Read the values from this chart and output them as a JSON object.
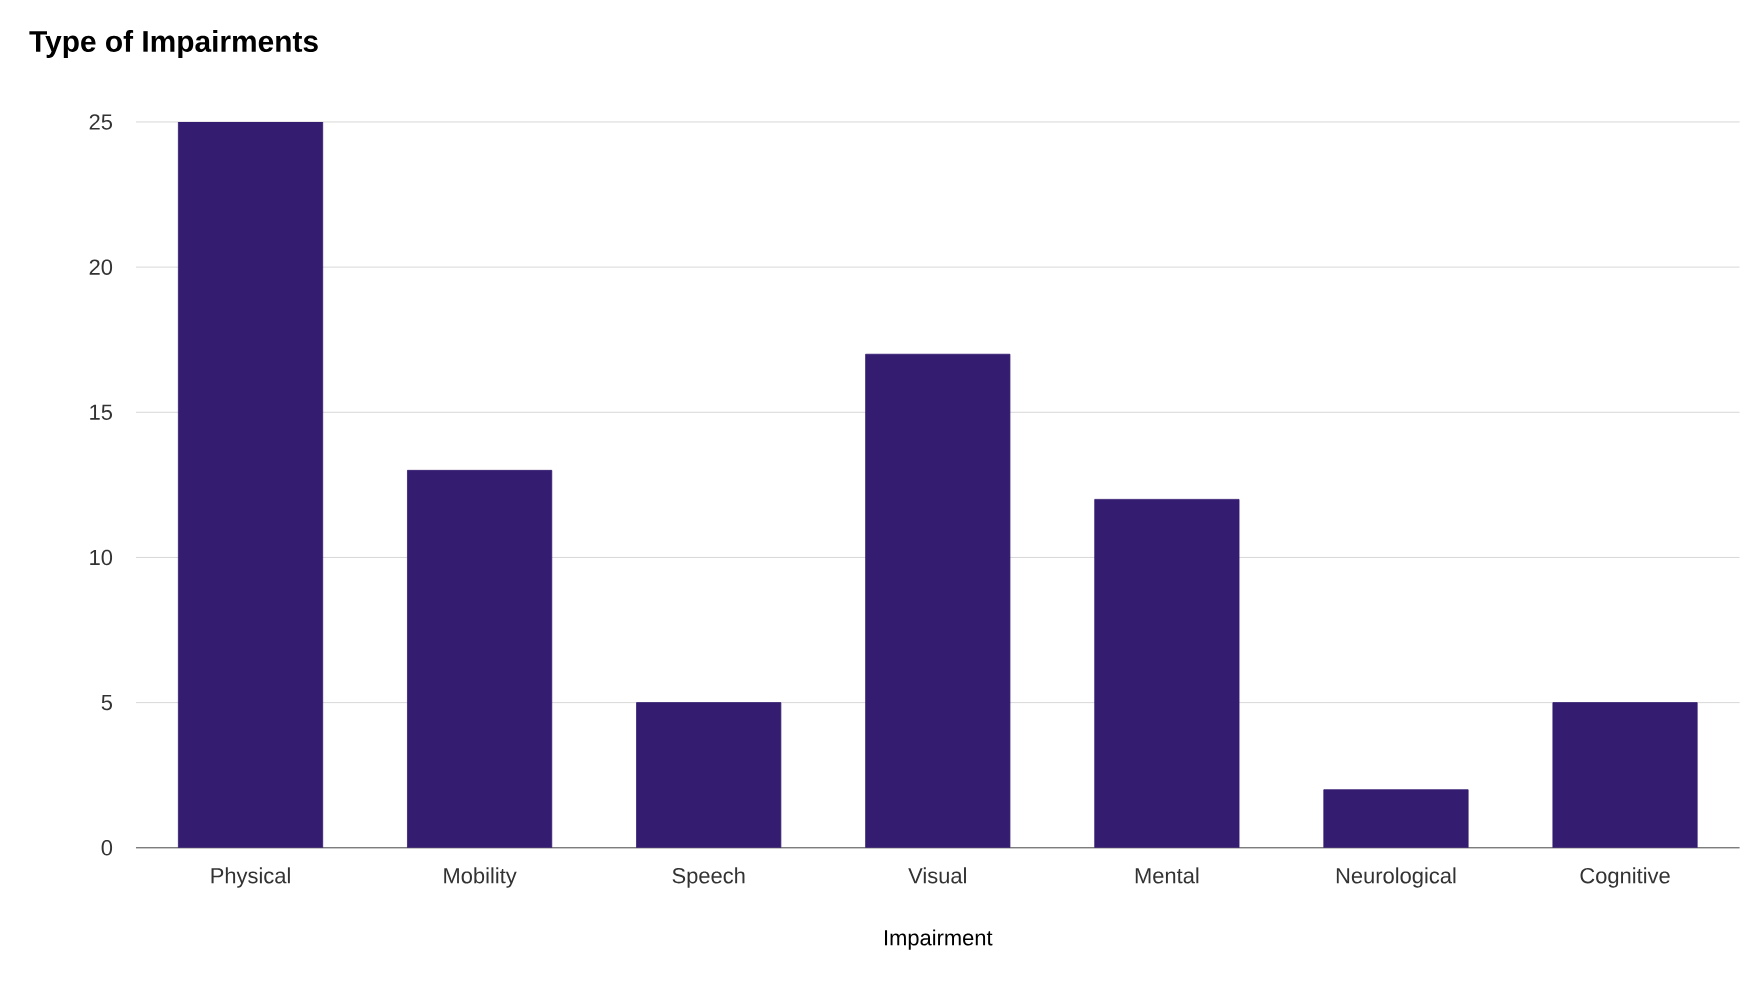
{
  "chart_data": {
    "type": "bar",
    "title": "Type of Impairments",
    "xlabel": "Impairment",
    "categories": [
      "Physical",
      "Mobility",
      "Speech",
      "Visual",
      "Mental",
      "Neurological",
      "Cognitive"
    ],
    "values": [
      25,
      13,
      5,
      17,
      12,
      2,
      5
    ],
    "color": "#341c70",
    "ylim": [
      0,
      25
    ],
    "yticks": [
      0,
      5,
      10,
      15,
      20,
      25
    ],
    "grid": "y"
  }
}
